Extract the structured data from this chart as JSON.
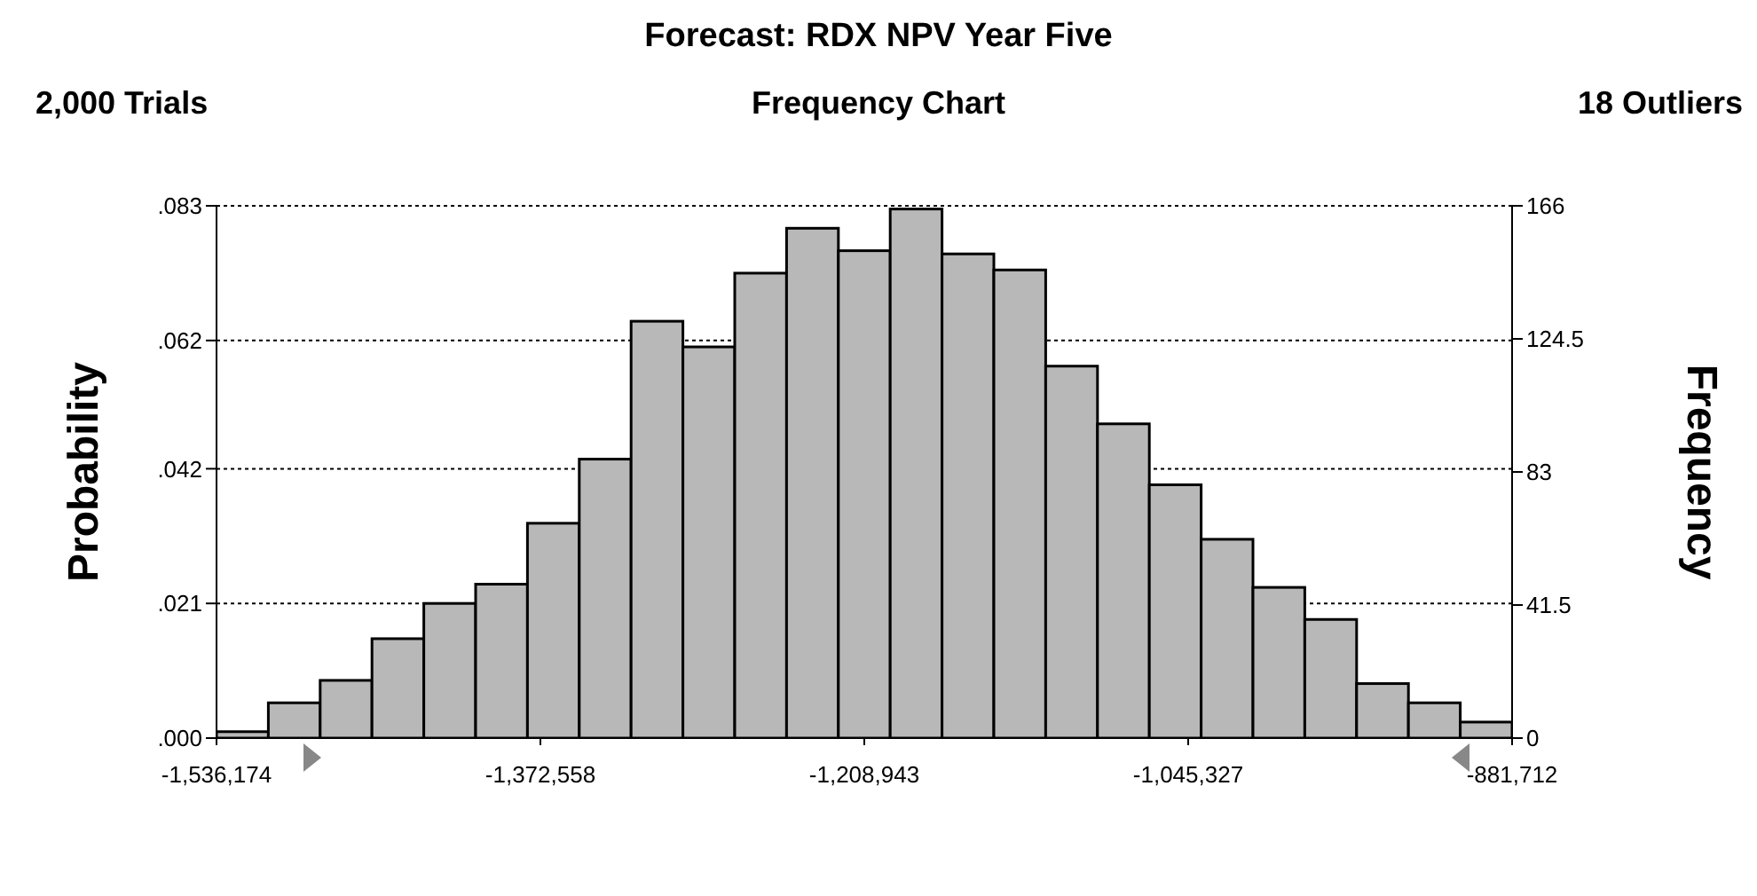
{
  "chart_data": {
    "type": "histogram",
    "title": "Forecast: RDX NPV Year Five",
    "subtitle": "Frequency Chart",
    "annotations": [
      "2,000 Trials",
      "18 Outliers"
    ],
    "ylabel": "Probability",
    "y2label": "Frequency",
    "bins": [
      -1536174,
      -1509996,
      -1483817,
      -1457639,
      -1431460,
      -1405282,
      -1379104,
      -1352925,
      -1326747,
      -1300568,
      -1274390,
      -1248211,
      -1222033,
      -1195855,
      -1169676,
      -1143498,
      -1117319,
      -1091141,
      -1064962,
      -1038784,
      -1012606,
      -986427,
      -960249,
      -934070,
      -907892,
      -881712
    ],
    "series": [
      {
        "color": "#b8b8b8",
        "axis": "y2",
        "values": [
          2,
          11,
          18,
          31,
          42,
          48,
          67,
          87,
          130,
          122,
          145,
          159,
          152,
          165,
          151,
          146,
          116,
          98,
          79,
          62,
          47,
          37,
          17,
          11,
          5
        ]
      }
    ],
    "xlim": [
      -1536174,
      -881712
    ],
    "xticks": [
      {
        "value": -1536174,
        "label": "-1,536,174"
      },
      {
        "value": -1372558,
        "label": "-1,372,558"
      },
      {
        "value": -1208943,
        "label": "-1,208,943"
      },
      {
        "value": -1045327,
        "label": "-1,045,327"
      },
      {
        "value": -881712,
        "label": "-881,712"
      }
    ],
    "ylim": [
      0,
      0.083
    ],
    "yticks": [
      {
        "value": 0,
        "label": ".000"
      },
      {
        "value": 0.021,
        "label": ".021"
      },
      {
        "value": 0.042,
        "label": ".042"
      },
      {
        "value": 0.062,
        "label": ".062"
      },
      {
        "value": 0.083,
        "label": ".083"
      }
    ],
    "y2lim": [
      0,
      166
    ],
    "y2ticks": [
      0,
      41.5,
      83,
      124.5,
      166
    ],
    "grid": "y",
    "legend": false
  }
}
